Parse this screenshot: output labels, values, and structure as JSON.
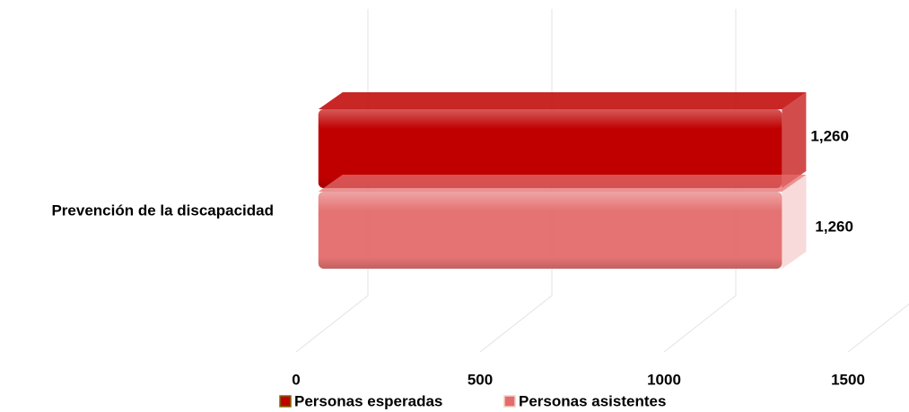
{
  "chart_data": {
    "type": "bar3d_horizontal",
    "categories": [
      "Prevención de la discapacidad"
    ],
    "series": [
      {
        "name": "Personas esperadas",
        "color": "#c00000",
        "values": [
          1260
        ],
        "value_labels": [
          "1,260"
        ]
      },
      {
        "name": "Personas asistentes",
        "color": "#e46c6c",
        "values": [
          1260
        ],
        "value_labels": [
          "1,260"
        ]
      }
    ],
    "xlim": [
      0,
      1500
    ],
    "xticks": [
      0,
      500,
      1000,
      1500
    ],
    "grid": true,
    "legend": "bottom"
  }
}
